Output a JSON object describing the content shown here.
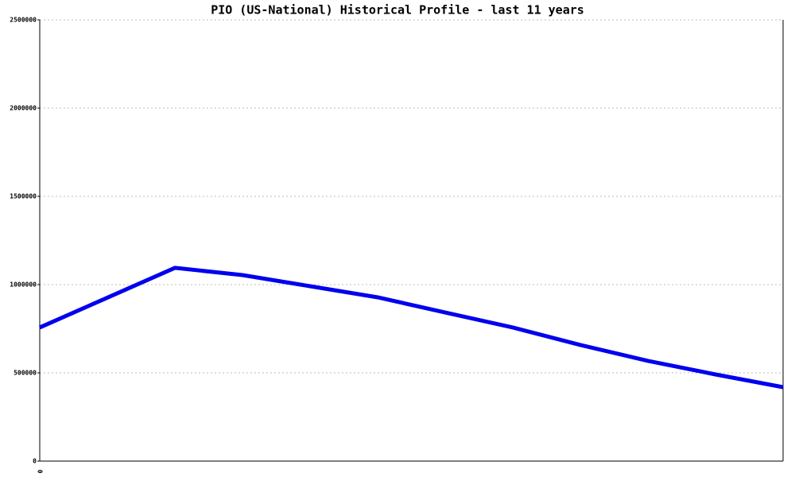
{
  "chart_data": {
    "type": "line",
    "title": "PIO (US-National) Historical Profile - last 11 years",
    "categories": [
      "0",
      null,
      null,
      null,
      null,
      null,
      null,
      null,
      null,
      null,
      null,
      null
    ],
    "series": [
      {
        "name": null,
        "color": "#0000ee",
        "values": [
          757000,
          926000,
          1095000,
          1054000,
          991000,
          928000,
          842000,
          757000,
          658000,
          568000,
          491000,
          419000
        ]
      }
    ],
    "ylim": [
      0,
      2500000
    ],
    "yticks": [
      0,
      500000,
      1000000,
      1500000,
      2000000,
      2500000
    ],
    "grid": true
  }
}
